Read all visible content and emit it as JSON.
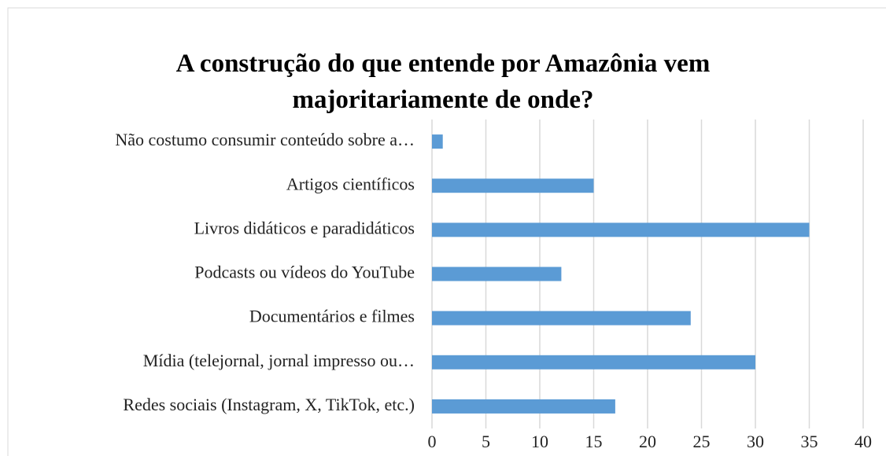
{
  "chart_data": {
    "type": "bar",
    "orientation": "horizontal",
    "title": "A construção do que entende por Amazônia vem majoritariamente de onde?",
    "categories": [
      "Não costumo consumir conteúdo sobre a…",
      "Artigos científicos",
      "Livros didáticos e paradidáticos",
      "Podcasts ou vídeos do YouTube",
      "Documentários e filmes",
      "Mídia (telejornal, jornal impresso ou…",
      "Redes sociais (Instagram, X, TikTok, etc.)"
    ],
    "values": [
      1,
      15,
      35,
      12,
      24,
      30,
      17
    ],
    "color": "#5b9bd5",
    "xlim": [
      0,
      40
    ],
    "xticks": [
      0,
      5,
      10,
      15,
      20,
      25,
      30,
      35,
      40
    ],
    "grid": true
  }
}
